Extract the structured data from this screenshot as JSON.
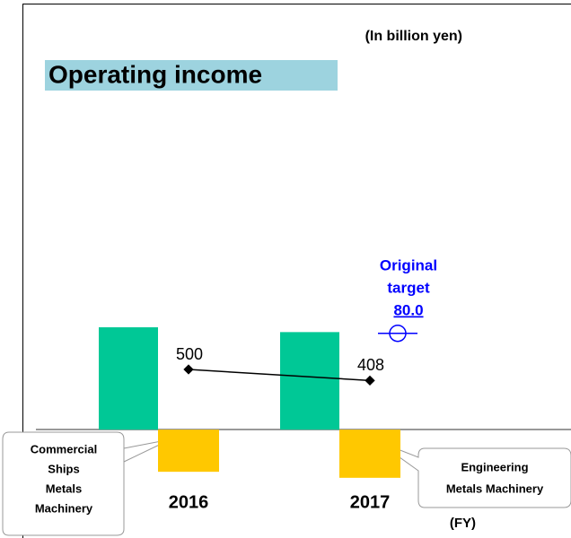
{
  "chart_data": {
    "type": "bar",
    "title": "Operating income",
    "subtitle": "(In billion yen)",
    "x_label": "(FY)",
    "categories": [
      "2016",
      "2017"
    ],
    "ylim": [
      -900,
      2600
    ],
    "y2lim": [
      -90,
      260
    ],
    "series": [
      {
        "color": "#00c896",
        "values": [
          850,
          810
        ]
      },
      {
        "color": "#ffc800",
        "values": [
          -350,
          -400
        ]
      },
      {
        "type": "line",
        "color": "#000000",
        "values": [
          500,
          408
        ]
      }
    ],
    "target": {
      "lines": [
        "Original",
        "target"
      ],
      "value": 80.0,
      "value_label": "80.0",
      "axis": "y2",
      "color": "#0000ff"
    },
    "annotations": [
      {
        "lines": [
          "Commercial",
          "Ships",
          "Metals",
          "Machinery"
        ]
      },
      {
        "lines": [
          "Engineering",
          "Metals Machinery"
        ]
      }
    ]
  }
}
